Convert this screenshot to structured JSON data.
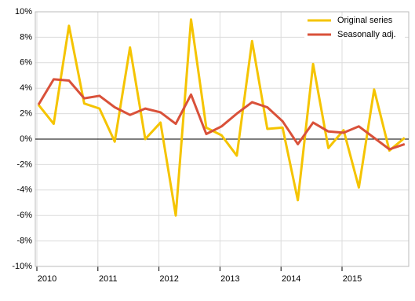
{
  "chart_data": {
    "type": "line",
    "categories": [
      "2010",
      null,
      null,
      null,
      "2011",
      null,
      null,
      null,
      "2012",
      null,
      null,
      null,
      "2013",
      null,
      null,
      null,
      "2014",
      null,
      null,
      null,
      "2015",
      null,
      null,
      null,
      null
    ],
    "series": [
      {
        "name": "Original series",
        "color": "#f5c400",
        "values": [
          2.7,
          1.2,
          8.9,
          2.8,
          2.4,
          -0.2,
          7.2,
          0.0,
          1.3,
          -6.0,
          9.4,
          0.9,
          0.3,
          -1.3,
          7.7,
          0.8,
          0.9,
          -4.8,
          5.9,
          -0.7,
          0.7,
          -3.8,
          3.9,
          -0.9,
          0.1
        ]
      },
      {
        "name": "Seasonally adj.",
        "color": "#d9513a",
        "values": [
          2.7,
          4.7,
          4.6,
          3.2,
          3.4,
          2.5,
          1.9,
          2.4,
          2.1,
          1.2,
          3.5,
          0.4,
          1.0,
          2.0,
          2.9,
          2.5,
          1.4,
          -0.4,
          1.3,
          0.6,
          0.5,
          1.0,
          0.1,
          -0.8,
          -0.4
        ]
      }
    ],
    "ylim": [
      -10,
      10
    ],
    "yticks": [
      {
        "value": -10,
        "label": "-10%"
      },
      {
        "value": -8,
        "label": "-8%"
      },
      {
        "value": -6,
        "label": "-6%"
      },
      {
        "value": -4,
        "label": "-4%"
      },
      {
        "value": -2,
        "label": "-2%"
      },
      {
        "value": 0,
        "label": "0%"
      },
      {
        "value": 2,
        "label": "2%"
      },
      {
        "value": 4,
        "label": "4%"
      },
      {
        "value": 6,
        "label": "6%"
      },
      {
        "value": 8,
        "label": "8%"
      },
      {
        "value": 10,
        "label": "10%"
      }
    ],
    "grid": true,
    "legend": "top-right"
  }
}
